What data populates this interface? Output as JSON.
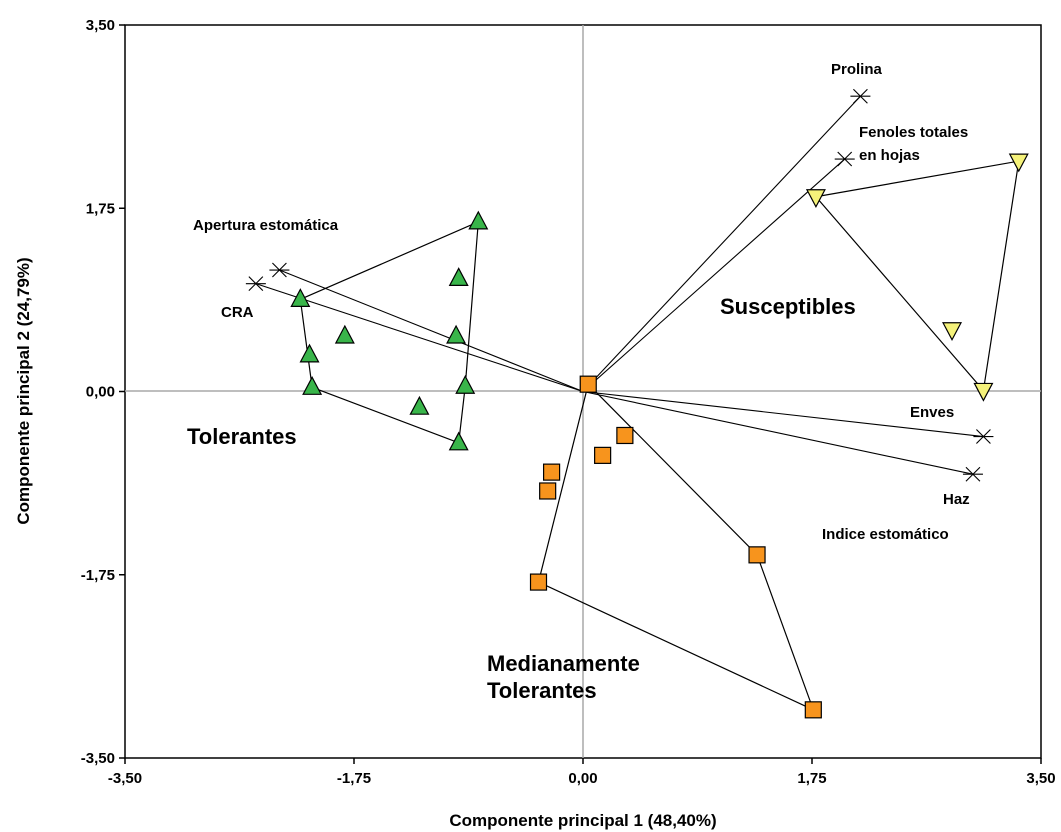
{
  "chart_data": {
    "type": "scatter",
    "title": "",
    "xlabel": "Componente principal 1 (48,40%)",
    "ylabel": "Componente principal 2 (24,79%)",
    "xlim": [
      -3.5,
      3.5
    ],
    "ylim": [
      -3.5,
      3.5
    ],
    "x_ticks": [
      "-3,50",
      "-1,75",
      "0,00",
      "1,75",
      "3,50"
    ],
    "y_ticks": [
      "-3,50",
      "-1,75",
      "0,00",
      "1,75",
      "3,50"
    ],
    "x_tick_values": [
      -3.5,
      -1.75,
      0,
      1.75,
      3.5
    ],
    "y_tick_values": [
      -3.5,
      -1.75,
      0,
      1.75,
      3.5
    ],
    "grid": false,
    "reference_lines": [
      0
    ],
    "variables": [
      {
        "name": "Prolina",
        "x": 2.12,
        "y": 2.82
      },
      {
        "name": "Fenoles totales en hojas",
        "x": 2.0,
        "y": 2.22
      },
      {
        "name": "Apertura estomática",
        "x": -2.32,
        "y": 1.16
      },
      {
        "name": "CRA",
        "x": -2.5,
        "y": 1.03
      },
      {
        "name": "Enves",
        "x": 3.06,
        "y": -0.43
      },
      {
        "name": "Haz / Indice estomático",
        "x": 2.98,
        "y": -0.79
      }
    ],
    "variable_labels": {
      "prolina": "Prolina",
      "fenoles_1": "Fenoles totales",
      "fenoles_2": "en hojas",
      "apertura": "Apertura estomática",
      "cra": "CRA",
      "enves": "Enves",
      "haz": "Haz",
      "indice": "Indice estomático"
    },
    "series": [
      {
        "name": "Tolerantes",
        "marker": "triangle-up",
        "color": "#39b54a",
        "points": [
          [
            -0.8,
            1.62
          ],
          [
            -0.95,
            1.08
          ],
          [
            -0.97,
            0.53
          ],
          [
            -0.9,
            0.05
          ],
          [
            -0.95,
            -0.49
          ],
          [
            -1.25,
            -0.15
          ],
          [
            -1.82,
            0.53
          ],
          [
            -2.09,
            0.35
          ],
          [
            -2.07,
            0.04
          ],
          [
            -2.16,
            0.88
          ]
        ],
        "hull": [
          [
            -2.16,
            0.88
          ],
          [
            -0.8,
            1.62
          ],
          [
            -0.9,
            0.05
          ],
          [
            -0.95,
            -0.49
          ],
          [
            -2.07,
            0.04
          ],
          [
            -2.16,
            0.88
          ]
        ]
      },
      {
        "name": "Susceptibles",
        "marker": "triangle-down",
        "color": "#f5f27a",
        "points": [
          [
            3.33,
            2.2
          ],
          [
            1.78,
            1.86
          ],
          [
            2.82,
            0.59
          ],
          [
            3.06,
            0.01
          ]
        ],
        "hull": [
          [
            1.78,
            1.86
          ],
          [
            3.33,
            2.2
          ],
          [
            3.06,
            0.01
          ],
          [
            1.78,
            1.86
          ]
        ]
      },
      {
        "name": "Medianamente Tolerantes",
        "marker": "square",
        "color": "#f7941d",
        "points": [
          [
            0.04,
            0.07
          ],
          [
            0.32,
            -0.42
          ],
          [
            0.15,
            -0.61
          ],
          [
            -0.24,
            -0.77
          ],
          [
            -0.27,
            -0.95
          ],
          [
            -0.34,
            -1.82
          ],
          [
            1.33,
            -1.56
          ],
          [
            1.76,
            -3.04
          ]
        ],
        "hull": [
          [
            0.04,
            0.07
          ],
          [
            -0.34,
            -1.82
          ],
          [
            1.76,
            -3.04
          ],
          [
            1.33,
            -1.56
          ],
          [
            0.04,
            0.07
          ]
        ]
      }
    ],
    "group_labels": {
      "tolerantes": "Tolerantes",
      "susceptibles": "Susceptibles",
      "mediana_1": "Medianamente",
      "mediana_2": "Tolerantes"
    }
  }
}
